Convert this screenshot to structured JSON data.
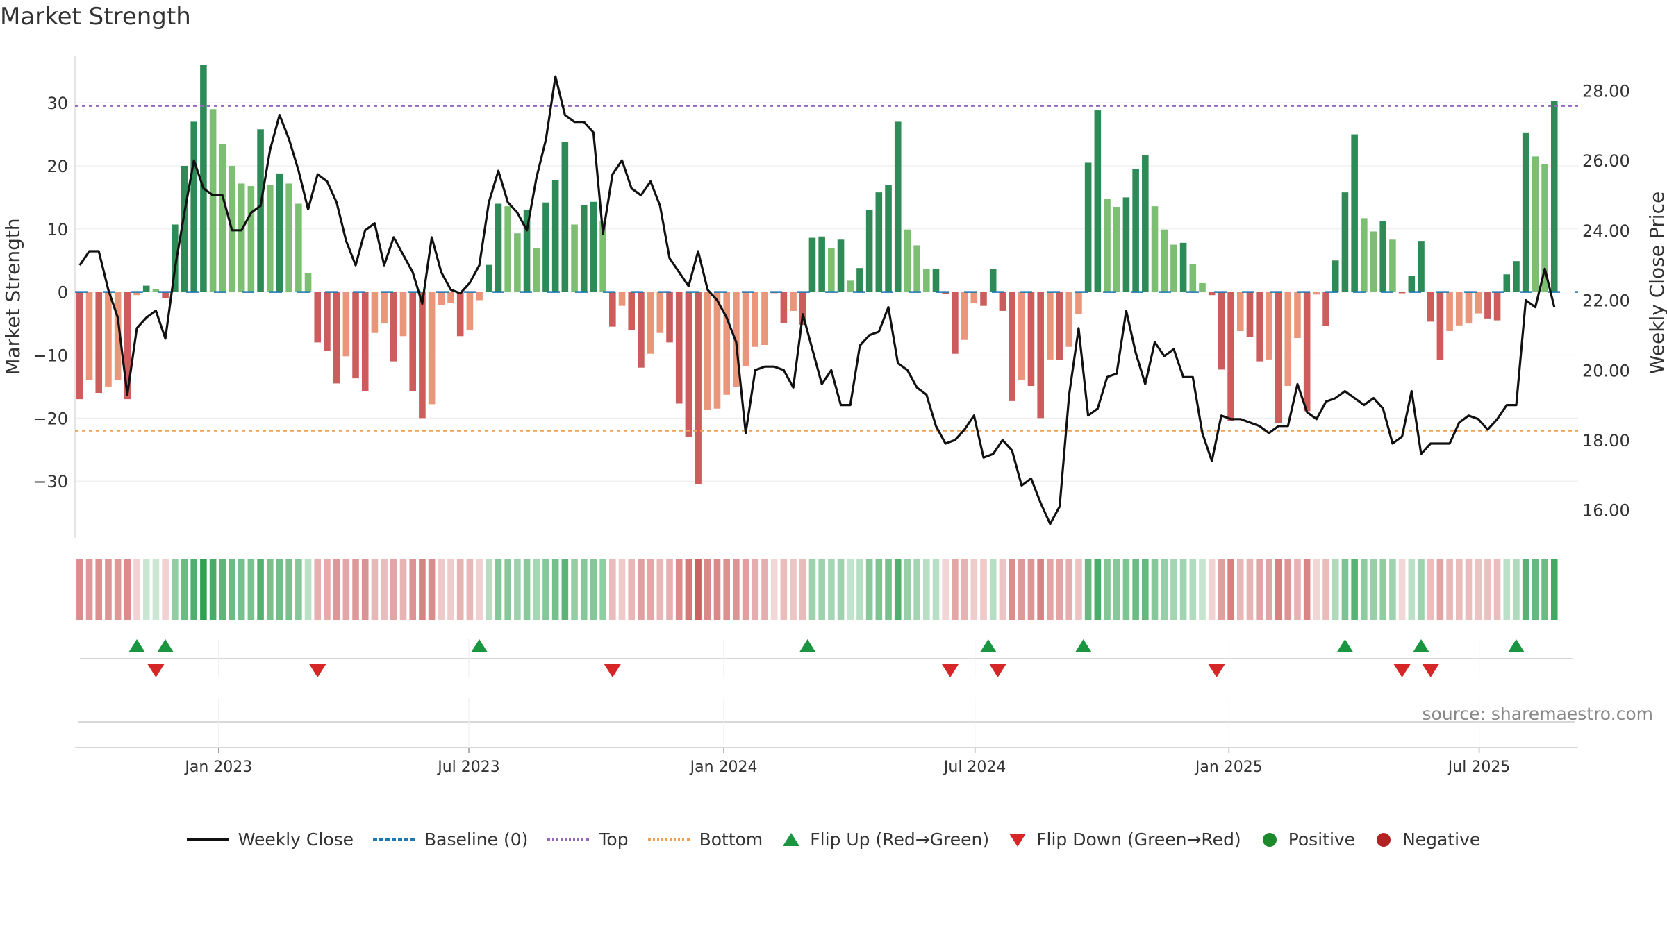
{
  "header": {
    "title": "Market Strength"
  },
  "footer": {
    "source": "source: sharemaestro.com"
  },
  "colors": {
    "weekly_close": "#111111",
    "baseline": "#1f77b4",
    "top": "#9467bd",
    "bottom": "#f0a050",
    "flip_up": "#1a9641",
    "flip_down": "#d62728",
    "positive": "#1a8a2a",
    "negative": "#b22222",
    "strong_green": "#2e8b57",
    "light_green": "#7cbf72",
    "strong_red": "#cd5c5c",
    "light_red": "#e9967a"
  },
  "legend": [
    {
      "label": "Weekly Close",
      "kind": "line-solid",
      "color": "#111111"
    },
    {
      "label": "Baseline (0)",
      "kind": "line-dash",
      "color": "#1f77b4"
    },
    {
      "label": "Top",
      "kind": "line-dot",
      "color": "#9467bd"
    },
    {
      "label": "Bottom",
      "kind": "line-dot",
      "color": "#f0a050"
    },
    {
      "label": "Flip Up (Red→Green)",
      "kind": "tri-up",
      "color": "#1a9641"
    },
    {
      "label": "Flip Down (Green→Red)",
      "kind": "tri-down",
      "color": "#d62728"
    },
    {
      "label": "Positive",
      "kind": "circle",
      "color": "#1a8a2a"
    },
    {
      "label": "Negative",
      "kind": "circle",
      "color": "#b22222"
    }
  ],
  "chart_data": {
    "type": "bar",
    "title": "Market Strength",
    "ylabel": "Market Strength",
    "y2label": "Weekly Close Price",
    "ylim": [
      -39,
      37.5
    ],
    "y2lim": [
      15.2,
      29.0
    ],
    "yticks": [
      "30",
      "20",
      "10",
      "0",
      "−10",
      "−20",
      "−30"
    ],
    "ytick_values": [
      30,
      20,
      10,
      0,
      -10,
      -20,
      -30
    ],
    "y2ticks": [
      "28.00",
      "26.00",
      "24.00",
      "22.00",
      "20.00",
      "18.00",
      "16.00"
    ],
    "y2tick_values": [
      28,
      26,
      24,
      22,
      20,
      18,
      16
    ],
    "x_range": [
      0,
      158
    ],
    "xtick_labels": [
      "Jan 2023",
      "Jul 2023",
      "Jan 2024",
      "Jul 2024",
      "Jan 2025",
      "Jul 2025"
    ],
    "xtick_positions": [
      15.1,
      41.4,
      68.2,
      94.6,
      121.3,
      147.6
    ],
    "top_line": 29.5,
    "bottom_line": -22,
    "strength": [
      -17,
      -14,
      -16,
      -15,
      -14,
      -17,
      -0.5,
      1,
      0.5,
      -1,
      10.7,
      20,
      27,
      36,
      29,
      23.5,
      20,
      17.2,
      16.8,
      25.8,
      17,
      18.8,
      17.2,
      14,
      3,
      -8,
      -9.3,
      -14.5,
      -10.2,
      -13.7,
      -15.7,
      -6.5,
      -5,
      -11,
      -7,
      -15.7,
      -20,
      -17.8,
      -2.1,
      -1.7,
      -7,
      -6,
      -1.3,
      4.3,
      14,
      13.6,
      9.3,
      13,
      7,
      14.2,
      17.8,
      23.8,
      10.7,
      13.8,
      14.3,
      11.2,
      -5.5,
      -2.2,
      -6,
      -12,
      -9.8,
      -6.5,
      -8,
      -17.7,
      -23,
      -30.5,
      -18.7,
      -18.5,
      -16.3,
      -15,
      -11.7,
      -8.7,
      -8.4,
      -0.2,
      -4.9,
      -3,
      -5.2,
      8.6,
      8.8,
      7,
      8.3,
      1.8,
      3.8,
      13,
      15.8,
      17,
      27,
      9.9,
      7.4,
      3.6,
      3.6,
      -0.3,
      -9.8,
      -7.6,
      -1.8,
      -2.2,
      3.7,
      -3,
      -17.3,
      -13.9,
      -14.9,
      -20,
      -10.7,
      -10.8,
      -8.7,
      -3.5,
      20.5,
      28.8,
      14.8,
      13.5,
      15,
      19.5,
      21.7,
      13.6,
      9.9,
      7.5,
      7.8,
      4.4,
      1.4,
      -0.5,
      -12.3,
      -20.4,
      -6.2,
      -7.1,
      -11,
      -10.7,
      -20.8,
      -14.9,
      -7.3,
      -18.9,
      -0.4,
      -5.4,
      5,
      15.8,
      25,
      11.7,
      9.6,
      11.2,
      8.3,
      -0.2,
      2.6,
      8.1,
      -4.7,
      -10.8,
      -6.2,
      -5.3,
      -5,
      -3.4,
      -4.2,
      -4.5,
      2.8,
      4.9,
      25.3,
      21.5,
      20.3,
      30.3
    ],
    "close": [
      23.0,
      23.4,
      23.4,
      22.3,
      21.5,
      19.3,
      21.2,
      21.5,
      21.7,
      20.9,
      22.9,
      24.5,
      26.0,
      25.2,
      25.0,
      25.0,
      24.0,
      24.0,
      24.5,
      24.7,
      26.3,
      27.3,
      26.6,
      25.7,
      24.6,
      25.6,
      25.4,
      24.8,
      23.7,
      23.0,
      24.0,
      24.2,
      23.0,
      23.8,
      23.3,
      22.8,
      21.9,
      23.8,
      22.8,
      22.3,
      22.2,
      22.5,
      23.0,
      24.8,
      25.7,
      24.8,
      24.5,
      24.0,
      25.5,
      26.6,
      28.4,
      27.3,
      27.1,
      27.1,
      26.8,
      23.9,
      25.6,
      26.0,
      25.2,
      25.0,
      25.4,
      24.7,
      23.2,
      22.8,
      22.4,
      23.4,
      22.3,
      22.0,
      21.5,
      20.8,
      18.2,
      20.0,
      20.1,
      20.1,
      20.0,
      19.5,
      21.6,
      20.6,
      19.6,
      20.0,
      19.0,
      19.0,
      20.7,
      21.0,
      21.1,
      21.8,
      20.2,
      20.0,
      19.5,
      19.3,
      18.4,
      17.9,
      18.0,
      18.3,
      18.7,
      17.5,
      17.6,
      18.0,
      17.7,
      16.7,
      16.9,
      16.2,
      15.6,
      16.1,
      19.3,
      21.2,
      18.7,
      18.9,
      19.8,
      19.9,
      21.7,
      20.5,
      19.6,
      20.8,
      20.4,
      20.6,
      19.8,
      19.8,
      18.2,
      17.4,
      18.7,
      18.6,
      18.6,
      18.5,
      18.4,
      18.2,
      18.4,
      18.4,
      19.6,
      18.8,
      18.6,
      19.1,
      19.2,
      19.4,
      19.2,
      19.0,
      19.2,
      18.9,
      17.9,
      18.1,
      19.4,
      17.6,
      17.9,
      17.9,
      17.9,
      18.5,
      18.7,
      18.6,
      18.3,
      18.6,
      19.0,
      19.0,
      22.0,
      21.8,
      22.9,
      21.8
    ],
    "flip_up": [
      6.5,
      9.5,
      42.5,
      77,
      96,
      106,
      133.5,
      141.5,
      151.5
    ],
    "flip_down": [
      8.5,
      25.5,
      56.5,
      92,
      97,
      120,
      139.5,
      142.5
    ]
  }
}
